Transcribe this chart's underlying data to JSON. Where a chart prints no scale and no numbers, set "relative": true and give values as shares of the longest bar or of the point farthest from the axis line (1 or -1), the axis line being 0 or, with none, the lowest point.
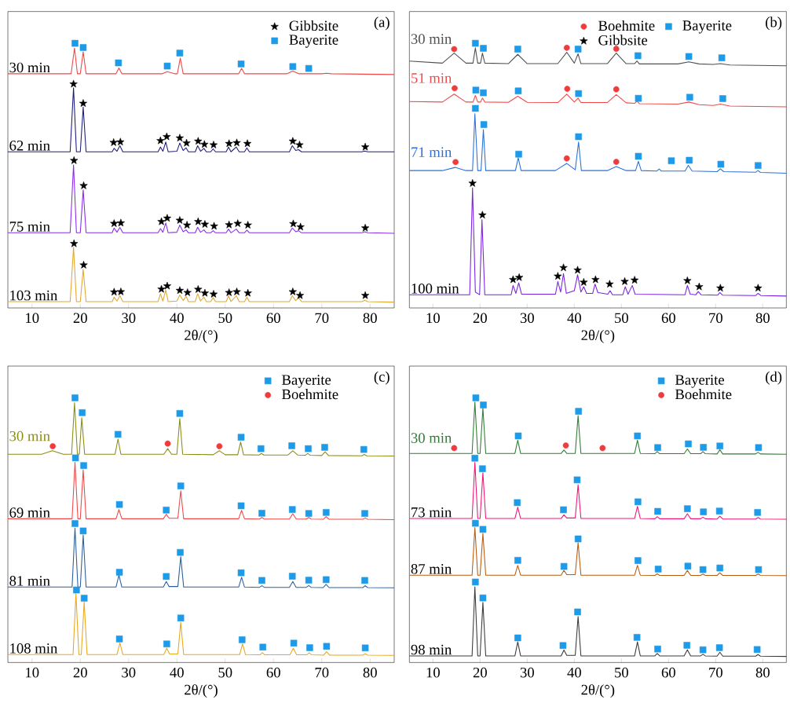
{
  "chart_data": [
    {
      "type": "line",
      "relative": true,
      "xlim": [
        5,
        85
      ],
      "xticks": [
        10,
        20,
        30,
        40,
        50,
        60,
        70,
        80
      ],
      "xlabel": "2θ/(°)",
      "annotations": [
        "(a)"
      ],
      "legend": "top right",
      "tick_labels": "x",
      "series": [
        {
          "name": "30 min",
          "color": "#f04848",
          "x": [
            5,
            18.1,
            18.8,
            19.4,
            20.0,
            20.6,
            21.2,
            27.4,
            28,
            28.6,
            37,
            38,
            39.5,
            40.1,
            40.7,
            41.3,
            52.8,
            53.4,
            54,
            62.8,
            64,
            65.2,
            70,
            71,
            72,
            85
          ],
          "values": [
            0.885,
            0.885,
            0.982,
            0.885,
            0.885,
            0.968,
            0.885,
            0.885,
            0.907,
            0.885,
            0.885,
            0.893,
            0.885,
            0.885,
            0.944,
            0.885,
            0.885,
            0.905,
            0.885,
            0.885,
            0.895,
            0.885,
            0.885,
            0.887,
            0.885,
            0.882
          ]
        },
        {
          "name": "62 min",
          "color": "#1c1c7c",
          "x": [
            5,
            17.9,
            18.6,
            19.2,
            20.0,
            20.6,
            21.2,
            26.6,
            27,
            27.6,
            28.2,
            28.8,
            36.1,
            36.6,
            37.1,
            37.7,
            38.2,
            40.0,
            40.6,
            41.3,
            41.9,
            42.4,
            43.8,
            44.3,
            44.9,
            45.6,
            46.1,
            47.0,
            47.5,
            48.0,
            50.2,
            50.7,
            51.2,
            52.3,
            52.9,
            54.0,
            54.5,
            55.0,
            63.3,
            63.9,
            64.6,
            65.2,
            65.8,
            78.3,
            78.9,
            79.5,
            85
          ],
          "values": [
            0.59,
            0.59,
            0.832,
            0.59,
            0.59,
            0.759,
            0.59,
            0.59,
            0.603,
            0.592,
            0.613,
            0.59,
            0.59,
            0.608,
            0.592,
            0.627,
            0.59,
            0.592,
            0.623,
            0.595,
            0.605,
            0.59,
            0.59,
            0.613,
            0.592,
            0.603,
            0.59,
            0.59,
            0.601,
            0.59,
            0.59,
            0.608,
            0.59,
            0.608,
            0.59,
            0.59,
            0.605,
            0.59,
            0.59,
            0.613,
            0.595,
            0.598,
            0.59,
            0.59,
            0.593,
            0.59,
            0.59
          ]
        },
        {
          "name": "75 min",
          "color": "#8a2be8",
          "x": [
            5,
            17.9,
            18.6,
            19.2,
            20.0,
            20.6,
            21.2,
            26.6,
            27,
            27.6,
            28.2,
            28.8,
            36.1,
            36.6,
            37.1,
            37.7,
            38.2,
            40.0,
            40.6,
            41.3,
            41.9,
            42.4,
            43.8,
            44.3,
            44.9,
            45.6,
            46.1,
            47.0,
            47.5,
            48.0,
            50.2,
            50.7,
            51.2,
            52.3,
            52.9,
            54.0,
            54.5,
            55.0,
            63.3,
            63.9,
            64.6,
            65.2,
            65.8,
            78.3,
            78.9,
            79.5,
            85
          ],
          "values": [
            0.284,
            0.284,
            0.54,
            0.284,
            0.284,
            0.447,
            0.284,
            0.284,
            0.302,
            0.286,
            0.304,
            0.284,
            0.284,
            0.3,
            0.286,
            0.321,
            0.284,
            0.286,
            0.313,
            0.288,
            0.295,
            0.284,
            0.284,
            0.305,
            0.286,
            0.295,
            0.284,
            0.284,
            0.292,
            0.284,
            0.284,
            0.298,
            0.284,
            0.298,
            0.284,
            0.284,
            0.294,
            0.284,
            0.284,
            0.302,
            0.288,
            0.292,
            0.284,
            0.284,
            0.288,
            0.284,
            0.282
          ]
        },
        {
          "name": "103 min",
          "color": "#e2a832",
          "x": [
            5,
            17.9,
            18.6,
            19.2,
            20.0,
            20.6,
            21.2,
            26.6,
            27,
            27.6,
            28.2,
            28.8,
            36.1,
            36.6,
            37.1,
            37.7,
            38.2,
            40.0,
            40.6,
            41.3,
            41.9,
            42.4,
            43.8,
            44.3,
            44.9,
            45.6,
            46.1,
            47.0,
            47.5,
            48.0,
            50.2,
            50.7,
            51.2,
            52.3,
            52.9,
            54.0,
            54.5,
            55.0,
            63.3,
            63.9,
            64.6,
            65.2,
            65.8,
            78.3,
            78.9,
            79.5,
            85
          ],
          "values": [
            0.024,
            0.024,
            0.229,
            0.024,
            0.024,
            0.146,
            0.024,
            0.024,
            0.041,
            0.026,
            0.046,
            0.024,
            0.024,
            0.054,
            0.026,
            0.068,
            0.024,
            0.026,
            0.049,
            0.028,
            0.044,
            0.024,
            0.024,
            0.054,
            0.026,
            0.041,
            0.024,
            0.024,
            0.039,
            0.024,
            0.024,
            0.046,
            0.024,
            0.046,
            0.024,
            0.024,
            0.041,
            0.024,
            0.024,
            0.046,
            0.028,
            0.039,
            0.024,
            0.024,
            0.029,
            0.024,
            0.022
          ]
        },
        {
          "name": "Gibbsite",
          "type": "scatter",
          "marker": "star",
          "color": "#000000",
          "x": [
            18.6,
            20.6,
            26.9,
            28.3,
            36.6,
            37.9,
            40.6,
            42,
            44.4,
            45.7,
            47.6,
            50.8,
            52.4,
            54.6,
            64,
            65.4,
            79,
            18.7,
            20.7,
            27,
            28.4,
            36.8,
            38,
            40.6,
            42.1,
            44.4,
            45.8,
            47.7,
            50.8,
            52.6,
            54.7,
            64.1,
            65.6,
            79,
            18.7,
            20.7,
            27,
            28.4,
            36.8,
            38,
            40.6,
            42.2,
            44.4,
            45.8,
            47.6,
            50.8,
            52.4,
            54.7,
            64,
            65.5,
            79
          ],
          "values": [
            0.846,
            0.773,
            0.625,
            0.627,
            0.632,
            0.647,
            0.642,
            0.623,
            0.63,
            0.618,
            0.616,
            0.621,
            0.624,
            0.621,
            0.63,
            0.616,
            0.608,
            0.557,
            0.462,
            0.319,
            0.321,
            0.326,
            0.339,
            0.331,
            0.313,
            0.326,
            0.316,
            0.309,
            0.314,
            0.319,
            0.313,
            0.318,
            0.306,
            0.302,
            0.243,
            0.162,
            0.06,
            0.061,
            0.071,
            0.083,
            0.066,
            0.058,
            0.07,
            0.056,
            0.052,
            0.058,
            0.061,
            0.056,
            0.061,
            0.047,
            0.047
          ]
        },
        {
          "name": "Bayerite",
          "type": "scatter",
          "marker": "square",
          "color": "#1e9be8",
          "x": [
            18.9,
            20.6,
            27.9,
            38,
            40.6,
            53.3,
            64,
            67.3
          ],
          "values": [
            1.0,
            0.984,
            0.926,
            0.914,
            0.963,
            0.922,
            0.912,
            0.905
          ]
        }
      ]
    },
    {
      "type": "line",
      "relative": true,
      "xlim": [
        5,
        85
      ],
      "xticks": [
        10,
        20,
        30,
        40,
        50,
        60,
        70,
        80
      ],
      "xlabel": "2θ/(°)",
      "annotations": [
        "(b)"
      ],
      "legend": "top right",
      "tick_labels": "x",
      "series": [
        {
          "name": "30 min",
          "color": "#505050",
          "x": [
            5,
            12,
            14.5,
            17,
            18.5,
            19,
            19.5,
            20.1,
            20.5,
            21,
            26,
            28,
            30,
            36.5,
            38.4,
            40,
            40.8,
            41.4,
            47,
            48.9,
            51,
            52.8,
            53.3,
            53.8,
            62,
            64.3,
            66.5,
            69.5,
            71,
            73,
            85
          ],
          "values": [
            0.933,
            0.925,
            0.963,
            0.925,
            0.925,
            0.983,
            0.925,
            0.925,
            0.963,
            0.925,
            0.923,
            0.958,
            0.923,
            0.923,
            0.966,
            0.925,
            0.96,
            0.923,
            0.923,
            0.963,
            0.923,
            0.923,
            0.933,
            0.922,
            0.922,
            0.93,
            0.922,
            0.92,
            0.923,
            0.918,
            0.915
          ]
        },
        {
          "name": "51 min",
          "color": "#f04848",
          "x": [
            5,
            12,
            14.5,
            17,
            18.5,
            19,
            19.5,
            20.1,
            20.5,
            21,
            26,
            28,
            30,
            36.5,
            38.4,
            40,
            40.8,
            41.4,
            47,
            48.9,
            51,
            52.8,
            53.3,
            53.8,
            62,
            64.3,
            66.5,
            69.5,
            71,
            73,
            85
          ],
          "values": [
            0.78,
            0.778,
            0.808,
            0.778,
            0.778,
            0.803,
            0.778,
            0.778,
            0.793,
            0.778,
            0.777,
            0.8,
            0.777,
            0.776,
            0.808,
            0.778,
            0.793,
            0.776,
            0.776,
            0.806,
            0.775,
            0.773,
            0.782,
            0.772,
            0.77,
            0.778,
            0.768,
            0.765,
            0.77,
            0.763,
            0.76
          ]
        },
        {
          "name": "71 min",
          "color": "#2a70d8",
          "x": [
            5,
            12,
            14.7,
            17,
            18.4,
            18.9,
            19.5,
            20.2,
            20.7,
            21.2,
            27.5,
            28.1,
            28.7,
            36,
            38.4,
            40.2,
            40.9,
            41.5,
            47,
            48.9,
            51,
            53,
            53.6,
            54.2,
            57.5,
            58,
            58.5,
            63.5,
            64.2,
            65,
            70.3,
            71,
            71.7,
            78.5,
            79,
            79.5,
            85
          ],
          "values": [
            0.519,
            0.519,
            0.531,
            0.519,
            0.519,
            0.734,
            0.519,
            0.519,
            0.674,
            0.519,
            0.519,
            0.567,
            0.519,
            0.519,
            0.546,
            0.522,
            0.627,
            0.519,
            0.519,
            0.534,
            0.519,
            0.519,
            0.554,
            0.519,
            0.517,
            0.525,
            0.517,
            0.517,
            0.539,
            0.517,
            0.515,
            0.526,
            0.515,
            0.513,
            0.519,
            0.512,
            0.509
          ]
        },
        {
          "name": "100 min",
          "color": "#7a22e0",
          "x": [
            5,
            17.8,
            18.4,
            19.0,
            19.9,
            20.4,
            21.0,
            26.6,
            27,
            27.6,
            28.2,
            28.8,
            36.0,
            36.5,
            37.1,
            37.7,
            38.3,
            40.0,
            40.7,
            41.4,
            42,
            42.6,
            43.9,
            44.4,
            45.0,
            47.1,
            47.6,
            48.1,
            50.3,
            50.8,
            51.4,
            52.3,
            52.9,
            63.5,
            64,
            64.6,
            65.8,
            66.3,
            66.9,
            70.4,
            70.9,
            71.5,
            78.5,
            79,
            79.6,
            85
          ],
          "values": [
            0.05,
            0.05,
            0.454,
            0.06,
            0.05,
            0.334,
            0.05,
            0.05,
            0.085,
            0.055,
            0.095,
            0.052,
            0.052,
            0.1,
            0.06,
            0.13,
            0.055,
            0.065,
            0.125,
            0.06,
            0.08,
            0.055,
            0.055,
            0.09,
            0.058,
            0.052,
            0.065,
            0.05,
            0.05,
            0.08,
            0.052,
            0.085,
            0.052,
            0.05,
            0.085,
            0.052,
            0.05,
            0.062,
            0.05,
            0.048,
            0.058,
            0.048,
            0.047,
            0.055,
            0.047,
            0.045
          ]
        },
        {
          "name": "Boehmite",
          "type": "scatter",
          "marker": "circle",
          "color": "#ef3b3b",
          "x": [
            14.5,
            38.4,
            48.9,
            14.6,
            38.5,
            48.9,
            14.8,
            38.4,
            48.9
          ],
          "values": [
            0.978,
            0.983,
            0.979,
            0.83,
            0.828,
            0.826,
            0.551,
            0.565,
            0.552
          ]
        },
        {
          "name": "Bayerite",
          "type": "scatter",
          "marker": "square",
          "color": "#1e9be8",
          "x": [
            19,
            20.7,
            28,
            40.8,
            53.5,
            64.3,
            71.3,
            19.1,
            20.7,
            28.1,
            40.9,
            53.6,
            64.5,
            71.5,
            19,
            20.8,
            28.2,
            40.9,
            53.6,
            60.6,
            64.4,
            71.1,
            79
          ],
          "values": [
            1.0,
            0.981,
            0.978,
            0.978,
            0.953,
            0.95,
            0.945,
            0.823,
            0.813,
            0.82,
            0.81,
            0.792,
            0.796,
            0.791,
            0.754,
            0.693,
            0.581,
            0.647,
            0.573,
            0.556,
            0.558,
            0.543,
            0.538
          ]
        },
        {
          "name": "Gibbsite",
          "type": "scatter",
          "marker": "star",
          "color": "#000000",
          "x": [
            18.4,
            20.5,
            27,
            28.3,
            36.5,
            37.7,
            40.7,
            42,
            44.5,
            47.5,
            50.7,
            52.8,
            64,
            66.5,
            71,
            79
          ],
          "values": [
            0.471,
            0.351,
            0.107,
            0.115,
            0.12,
            0.152,
            0.143,
            0.097,
            0.107,
            0.09,
            0.1,
            0.105,
            0.103,
            0.08,
            0.075,
            0.075
          ]
        }
      ]
    },
    {
      "type": "line",
      "relative": true,
      "xlim": [
        5,
        85
      ],
      "xticks": [
        10,
        20,
        30,
        40,
        50,
        60,
        70,
        80
      ],
      "xlabel": "2θ/(°)",
      "annotations": [
        "(c)"
      ],
      "legend": "top right",
      "tick_labels": "x",
      "series": [
        {
          "name": "30 min",
          "color": "#8c8c14",
          "x": [
            5,
            12,
            14.2,
            16.5,
            18.2,
            18.8,
            19.4,
            19.8,
            20.3,
            20.9,
            27.2,
            27.8,
            28.4,
            37.3,
            38.1,
            38.9,
            40.0,
            40.6,
            41.2,
            47.5,
            48.8,
            50,
            52.6,
            53.2,
            53.8,
            57,
            57.5,
            58,
            63,
            64,
            65,
            66.6,
            67.1,
            67.6,
            70,
            70.7,
            71.4,
            78.3,
            78.8,
            79.3,
            85
          ],
          "values": [
            0.787,
            0.787,
            0.8,
            0.787,
            0.787,
            0.981,
            0.787,
            0.787,
            0.925,
            0.787,
            0.787,
            0.844,
            0.787,
            0.787,
            0.808,
            0.787,
            0.787,
            0.922,
            0.787,
            0.785,
            0.8,
            0.785,
            0.785,
            0.833,
            0.785,
            0.784,
            0.79,
            0.784,
            0.784,
            0.8,
            0.784,
            0.783,
            0.79,
            0.783,
            0.782,
            0.796,
            0.782,
            0.781,
            0.786,
            0.781,
            0.78
          ]
        },
        {
          "name": "69 min",
          "color": "#f04848",
          "x": [
            5,
            18.3,
            18.9,
            19.5,
            20.0,
            20.6,
            21.2,
            27.4,
            28,
            28.6,
            37.2,
            37.8,
            38.4,
            40.2,
            40.8,
            41.4,
            52.8,
            53.4,
            54,
            57.1,
            57.6,
            58.1,
            63.3,
            64,
            64.7,
            66.8,
            67.3,
            67.8,
            70.3,
            70.9,
            71.5,
            78.5,
            79,
            79.5,
            85
          ],
          "values": [
            0.543,
            0.543,
            0.756,
            0.543,
            0.543,
            0.728,
            0.543,
            0.543,
            0.578,
            0.543,
            0.543,
            0.56,
            0.545,
            0.545,
            0.649,
            0.543,
            0.543,
            0.575,
            0.543,
            0.542,
            0.548,
            0.542,
            0.542,
            0.562,
            0.542,
            0.542,
            0.548,
            0.542,
            0.541,
            0.551,
            0.541,
            0.541,
            0.546,
            0.541,
            0.54
          ]
        },
        {
          "name": "81 min",
          "color": "#2e5e9a",
          "x": [
            5,
            18.3,
            18.9,
            19.5,
            20.0,
            20.6,
            21.2,
            27.4,
            28,
            28.6,
            37.2,
            37.8,
            38.4,
            40.2,
            40.8,
            41.4,
            52.8,
            53.4,
            54,
            57.1,
            57.6,
            58.1,
            63.3,
            64,
            64.7,
            66.8,
            67.3,
            67.8,
            70.3,
            70.9,
            71.5,
            78.5,
            79,
            79.5,
            85
          ],
          "values": [
            0.285,
            0.285,
            0.508,
            0.285,
            0.285,
            0.482,
            0.285,
            0.285,
            0.33,
            0.285,
            0.285,
            0.306,
            0.287,
            0.287,
            0.4,
            0.285,
            0.285,
            0.322,
            0.285,
            0.284,
            0.29,
            0.284,
            0.284,
            0.306,
            0.284,
            0.284,
            0.291,
            0.284,
            0.283,
            0.295,
            0.283,
            0.283,
            0.29,
            0.283,
            0.282
          ]
        },
        {
          "name": "108 min",
          "color": "#e8a820",
          "x": [
            5,
            18.5,
            19.1,
            19.7,
            20.2,
            20.8,
            21.4,
            27.6,
            28.2,
            28.8,
            37.3,
            37.9,
            38.5,
            40.2,
            40.8,
            41.4,
            53,
            53.6,
            54.2,
            57.2,
            57.7,
            58.2,
            63.4,
            64.1,
            64.8,
            66.9,
            67.4,
            67.9,
            70.4,
            71,
            71.6,
            78.5,
            79,
            79.5,
            85
          ],
          "values": [
            0.03,
            0.03,
            0.26,
            0.03,
            0.03,
            0.229,
            0.03,
            0.03,
            0.074,
            0.03,
            0.03,
            0.054,
            0.032,
            0.032,
            0.152,
            0.03,
            0.03,
            0.07,
            0.03,
            0.029,
            0.037,
            0.029,
            0.029,
            0.054,
            0.029,
            0.029,
            0.037,
            0.029,
            0.028,
            0.041,
            0.028,
            0.028,
            0.033,
            0.028,
            0.027
          ]
        },
        {
          "name": "Bayerite",
          "type": "scatter",
          "marker": "square",
          "color": "#1e9be8",
          "x": [
            18.9,
            20.4,
            27.8,
            40.6,
            53.3,
            57.4,
            63.8,
            67.2,
            70.6,
            78.7,
            19,
            20.7,
            28.1,
            37.8,
            40.8,
            53.3,
            57.6,
            63.9,
            67.3,
            70.9,
            78.9,
            18.9,
            20.6,
            28.1,
            37.8,
            40.7,
            53.3,
            57.6,
            63.9,
            67.3,
            70.9,
            78.9,
            19.2,
            20.8,
            28.1,
            37.9,
            40.8,
            53.5,
            57.8,
            64.2,
            67.5,
            71,
            79
          ],
          "values": [
            1.0,
            0.944,
            0.862,
            0.941,
            0.851,
            0.808,
            0.819,
            0.808,
            0.813,
            0.805,
            0.773,
            0.744,
            0.597,
            0.576,
            0.667,
            0.592,
            0.564,
            0.578,
            0.563,
            0.567,
            0.563,
            0.525,
            0.497,
            0.341,
            0.325,
            0.416,
            0.339,
            0.31,
            0.326,
            0.311,
            0.313,
            0.31,
            0.274,
            0.243,
            0.089,
            0.07,
            0.168,
            0.086,
            0.058,
            0.073,
            0.056,
            0.061,
            0.055
          ]
        },
        {
          "name": "Boehmite",
          "type": "scatter",
          "marker": "circle",
          "color": "#ef3b3b",
          "x": [
            14.3,
            38.1,
            48.8
          ],
          "values": [
            0.817,
            0.827,
            0.817
          ]
        }
      ]
    },
    {
      "type": "line",
      "relative": true,
      "xlim": [
        5,
        85
      ],
      "xticks": [
        10,
        20,
        30,
        40,
        50,
        60,
        70,
        80
      ],
      "xlabel": "2θ/(°)",
      "annotations": [
        "(d)"
      ],
      "legend": "top right",
      "tick_labels": "x",
      "series": [
        {
          "name": "30 min",
          "color": "#2e7d32",
          "x": [
            5,
            18.3,
            18.9,
            19.5,
            20.0,
            20.6,
            21.2,
            27.4,
            28,
            28.6,
            37.2,
            37.8,
            38.4,
            40.2,
            40.8,
            41.4,
            52.8,
            53.4,
            54,
            57.1,
            57.6,
            58.1,
            63.3,
            64,
            64.7,
            66.8,
            67.3,
            67.8,
            70.3,
            70.9,
            71.5,
            78.5,
            79,
            79.5,
            85
          ],
          "values": [
            0.79,
            0.79,
            0.984,
            0.79,
            0.79,
            0.961,
            0.79,
            0.79,
            0.84,
            0.79,
            0.79,
            0.803,
            0.79,
            0.79,
            0.933,
            0.79,
            0.79,
            0.84,
            0.79,
            0.789,
            0.797,
            0.789,
            0.789,
            0.807,
            0.789,
            0.789,
            0.797,
            0.789,
            0.788,
            0.804,
            0.788,
            0.788,
            0.794,
            0.788,
            0.787
          ]
        },
        {
          "name": "73 min",
          "color": "#f0147a",
          "x": [
            5,
            18.3,
            18.9,
            19.5,
            20.0,
            20.6,
            21.2,
            27.4,
            28,
            28.6,
            37.2,
            37.8,
            38.4,
            40.2,
            40.8,
            41.4,
            52.8,
            53.4,
            54,
            57.1,
            57.6,
            58.1,
            63.3,
            64,
            64.7,
            66.8,
            67.3,
            67.8,
            70.3,
            70.9,
            71.5,
            78.5,
            79,
            79.5,
            85
          ],
          "values": [
            0.544,
            0.544,
            0.756,
            0.544,
            0.544,
            0.717,
            0.544,
            0.544,
            0.587,
            0.544,
            0.544,
            0.558,
            0.546,
            0.546,
            0.672,
            0.544,
            0.544,
            0.59,
            0.544,
            0.543,
            0.551,
            0.543,
            0.543,
            0.562,
            0.543,
            0.543,
            0.549,
            0.543,
            0.542,
            0.553,
            0.542,
            0.542,
            0.548,
            0.542,
            0.541
          ]
        },
        {
          "name": "87 min",
          "color": "#b85c10",
          "x": [
            5,
            18.3,
            18.9,
            19.5,
            20.0,
            20.6,
            21.2,
            27.4,
            28,
            28.6,
            37.2,
            37.8,
            38.4,
            40.2,
            40.8,
            41.4,
            52.8,
            53.4,
            54,
            57.1,
            57.6,
            58.1,
            63.3,
            64,
            64.7,
            66.8,
            67.3,
            67.8,
            70.3,
            70.9,
            71.5,
            78.5,
            79,
            79.5,
            85
          ],
          "values": [
            0.33,
            0.33,
            0.51,
            0.33,
            0.33,
            0.488,
            0.33,
            0.33,
            0.367,
            0.33,
            0.33,
            0.348,
            0.332,
            0.332,
            0.453,
            0.33,
            0.33,
            0.367,
            0.33,
            0.329,
            0.335,
            0.329,
            0.329,
            0.348,
            0.329,
            0.329,
            0.334,
            0.329,
            0.329,
            0.339,
            0.329,
            0.329,
            0.334,
            0.329,
            0.328
          ]
        },
        {
          "name": "98 min",
          "color": "#3a3a3a",
          "x": [
            5,
            18.3,
            18.9,
            19.5,
            20.0,
            20.6,
            21.2,
            27.4,
            28,
            28.6,
            37.2,
            37.8,
            38.4,
            40.2,
            40.8,
            41.4,
            52.8,
            53.4,
            54,
            57.1,
            57.6,
            58.1,
            63.3,
            64,
            64.7,
            66.8,
            67.3,
            67.8,
            70.3,
            70.9,
            71.5,
            78.5,
            79,
            79.5,
            85
          ],
          "values": [
            0.025,
            0.025,
            0.286,
            0.025,
            0.025,
            0.227,
            0.025,
            0.025,
            0.078,
            0.025,
            0.025,
            0.047,
            0.027,
            0.027,
            0.174,
            0.025,
            0.025,
            0.078,
            0.025,
            0.025,
            0.034,
            0.025,
            0.025,
            0.048,
            0.025,
            0.025,
            0.031,
            0.025,
            0.024,
            0.039,
            0.024,
            0.024,
            0.03,
            0.024,
            0.023
          ]
        },
        {
          "name": "Bayerite",
          "type": "scatter",
          "marker": "square",
          "color": "#1e9be8",
          "x": [
            19.1,
            20.7,
            28.1,
            40.9,
            53.4,
            57.7,
            64.2,
            67.4,
            70.9,
            79.1,
            18.9,
            20.5,
            27.9,
            37.7,
            40.6,
            53.5,
            57.7,
            64,
            67.4,
            70.8,
            78.9,
            19,
            20.6,
            28,
            37.8,
            40.8,
            53.5,
            57.8,
            64.1,
            67.3,
            70.9,
            79.1,
            19,
            20.6,
            28,
            37.6,
            40.7,
            53.3,
            57.7,
            63.9,
            67.3,
            70.8,
            78.8
          ],
          "values": [
            1.0,
            0.973,
            0.856,
            0.949,
            0.856,
            0.812,
            0.826,
            0.813,
            0.818,
            0.812,
            0.772,
            0.732,
            0.604,
            0.577,
            0.69,
            0.607,
            0.571,
            0.581,
            0.569,
            0.572,
            0.567,
            0.526,
            0.503,
            0.386,
            0.363,
            0.467,
            0.385,
            0.353,
            0.364,
            0.351,
            0.357,
            0.351,
            0.304,
            0.244,
            0.093,
            0.064,
            0.191,
            0.095,
            0.051,
            0.065,
            0.048,
            0.056,
            0.049
          ]
        },
        {
          "name": "Boehmite",
          "type": "scatter",
          "marker": "circle",
          "color": "#ef3b3b",
          "x": [
            14.5,
            38.2,
            46
          ],
          "values": [
            0.81,
            0.82,
            0.81
          ]
        }
      ]
    }
  ]
}
